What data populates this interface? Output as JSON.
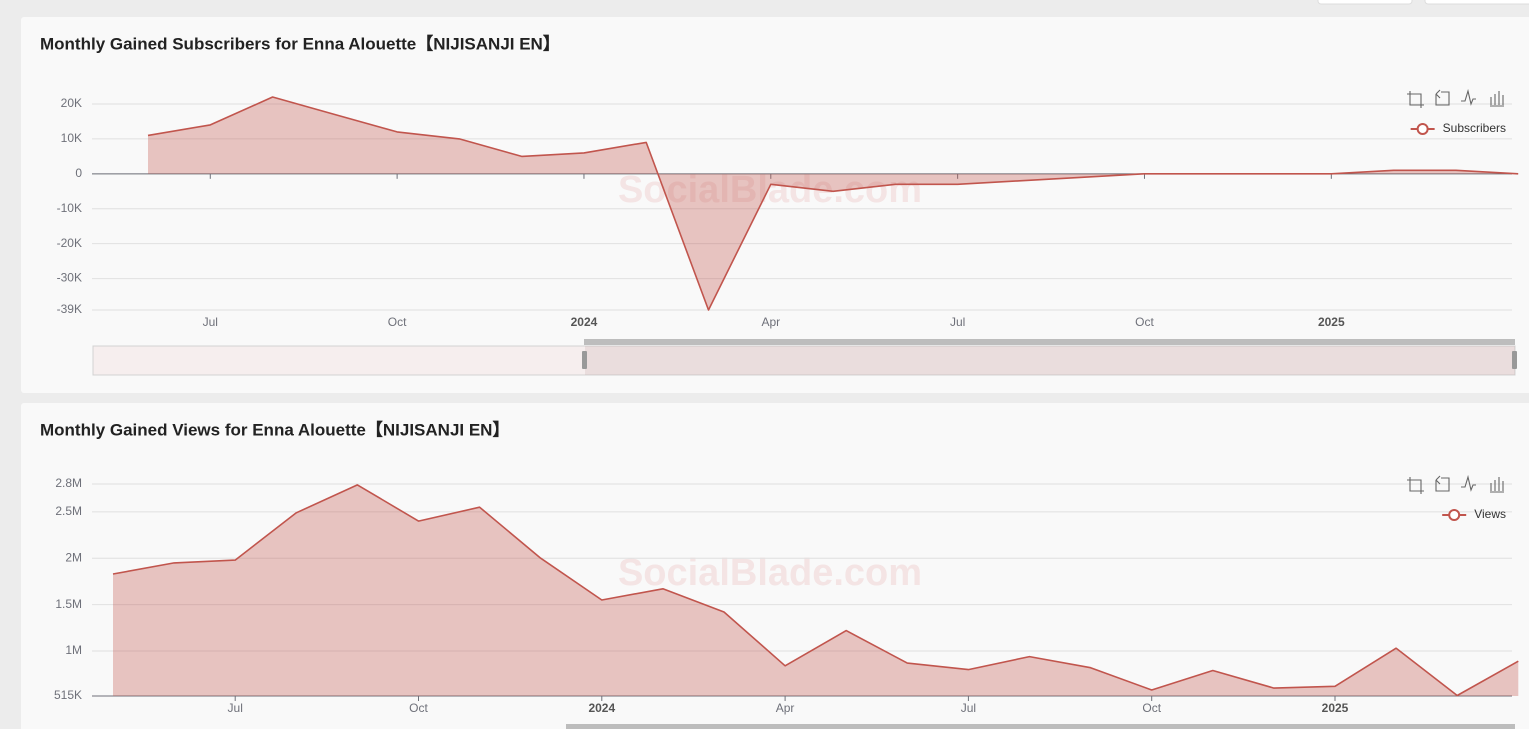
{
  "chart_data": [
    {
      "type": "area",
      "title": "Monthly Gained Subscribers for Enna Alouette【NIJISANJI EN】",
      "watermark": "SocialBlade.com",
      "x": [
        "2023-06",
        "2023-07",
        "2023-08",
        "2023-09",
        "2023-10",
        "2023-11",
        "2023-12",
        "2024-01",
        "2024-02",
        "2024-03",
        "2024-04",
        "2024-05",
        "2024-06",
        "2024-07",
        "2024-08",
        "2024-09",
        "2024-10",
        "2024-11",
        "2024-12",
        "2025-01",
        "2025-02",
        "2025-03",
        "2025-04"
      ],
      "series": [
        {
          "name": "Subscribers",
          "color": "#c1554d",
          "values": [
            11000,
            14000,
            22000,
            17000,
            12000,
            10000,
            5000,
            6000,
            9000,
            -39000,
            -3000,
            -5000,
            -3000,
            -3000,
            -2000,
            -1000,
            0,
            0,
            0,
            0,
            1000,
            1000,
            0
          ]
        }
      ],
      "ylim": [
        -39000,
        20000
      ],
      "yticks": [
        {
          "value": -39000,
          "label": "-39K"
        },
        {
          "value": -30000,
          "label": "-30K"
        },
        {
          "value": -20000,
          "label": "-20K"
        },
        {
          "value": -10000,
          "label": "-10K"
        },
        0,
        {
          "value": 10000,
          "label": "10K"
        },
        {
          "value": 20000,
          "label": "20K"
        }
      ],
      "xticks": [
        {
          "value": "2023-07",
          "label": "Jul"
        },
        {
          "value": "2023-10",
          "label": "Oct"
        },
        {
          "value": "2024-01",
          "label": "2024"
        },
        {
          "value": "2024-04",
          "label": "Apr"
        },
        {
          "value": "2024-07",
          "label": "Jul"
        },
        {
          "value": "2024-10",
          "label": "Oct"
        },
        {
          "value": "2025-01",
          "label": "2025"
        }
      ],
      "grid": true,
      "legend": "top-right"
    },
    {
      "type": "area",
      "title": "Monthly Gained Views for Enna Alouette【NIJISANJI EN】",
      "watermark": "SocialBlade.com",
      "x": [
        "2023-05",
        "2023-06",
        "2023-07",
        "2023-08",
        "2023-09",
        "2023-10",
        "2023-11",
        "2023-12",
        "2024-01",
        "2024-02",
        "2024-03",
        "2024-04",
        "2024-05",
        "2024-06",
        "2024-07",
        "2024-08",
        "2024-09",
        "2024-10",
        "2024-11",
        "2024-12",
        "2025-01",
        "2025-02",
        "2025-03",
        "2025-04"
      ],
      "series": [
        {
          "name": "Views",
          "color": "#c1554d",
          "values": [
            1830000,
            1950000,
            1980000,
            2490000,
            2790000,
            2400000,
            2550000,
            2000000,
            1550000,
            1670000,
            1420000,
            840000,
            1220000,
            870000,
            800000,
            940000,
            820000,
            580000,
            790000,
            600000,
            620000,
            1030000,
            520000,
            890000
          ]
        }
      ],
      "ylim": [
        515000,
        2800000
      ],
      "yticks": [
        {
          "value": 515000,
          "label": "515K"
        },
        {
          "value": 1000000,
          "label": "1M"
        },
        {
          "value": 1500000,
          "label": "1.5M"
        },
        {
          "value": 2000000,
          "label": "2M"
        },
        {
          "value": 2500000,
          "label": "2.5M"
        },
        {
          "value": 2800000,
          "label": "2.8M"
        }
      ],
      "xticks": [
        {
          "value": "2023-07",
          "label": "Jul"
        },
        {
          "value": "2023-10",
          "label": "Oct"
        },
        {
          "value": "2024-01",
          "label": "2024"
        },
        {
          "value": "2024-04",
          "label": "Apr"
        },
        {
          "value": "2024-07",
          "label": "Jul"
        },
        {
          "value": "2024-10",
          "label": "Oct"
        },
        {
          "value": "2025-01",
          "label": "2025"
        }
      ],
      "grid": true,
      "legend": "top-right"
    }
  ]
}
